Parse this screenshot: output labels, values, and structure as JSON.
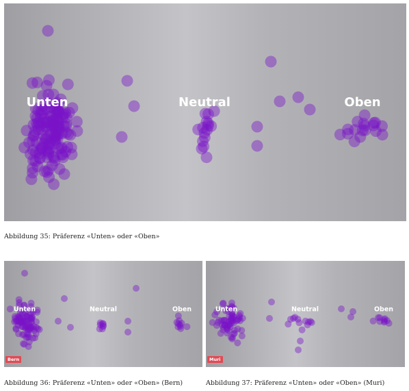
{
  "captions": {
    "main": "Abbildung 35: Präferenz «Unten» oder «Oben»",
    "bern": "Abbildung 36: Präferenz «Unten» oder «Oben» (Bern)",
    "muri": "Abbildung 37: Präferenz «Unten» oder «Oben» (Muri)"
  },
  "badges": {
    "bern": "Bern",
    "muri": "Muri"
  },
  "colors": {
    "dot": "#7a12c8",
    "background": "#b8b8bc",
    "badge": "#e04b55",
    "label": "#ffffff"
  },
  "chart_data": [
    {
      "type": "scatter",
      "title": "",
      "xlabel": "",
      "ylabel": "",
      "categories": [
        "Unten",
        "Neutral",
        "Oben"
      ],
      "series": [
        {
          "clusters": [
            {
              "label": "Unten",
              "count": 150
            },
            {
              "label": "Neutral",
              "count": 16
            },
            {
              "label": "Oben",
              "count": 18
            }
          ]
        }
      ],
      "grid": false,
      "legend": "none"
    },
    {
      "type": "scatter",
      "title": "",
      "categories": [
        "Unten",
        "Neutral",
        "Oben"
      ],
      "badge": "Bern",
      "series": [
        {
          "clusters": [
            {
              "label": "Unten",
              "count": 95
            },
            {
              "label": "Neutral",
              "count": 8
            },
            {
              "label": "Oben",
              "count": 10
            }
          ]
        }
      ],
      "grid": false,
      "legend": "none"
    },
    {
      "type": "scatter",
      "title": "",
      "categories": [
        "Unten",
        "Neutral",
        "Oben"
      ],
      "badge": "Muri",
      "series": [
        {
          "clusters": [
            {
              "label": "Unten",
              "count": 70
            },
            {
              "label": "Neutral",
              "count": 12
            },
            {
              "label": "Oben",
              "count": 10
            }
          ]
        }
      ],
      "grid": false,
      "legend": "none"
    }
  ]
}
